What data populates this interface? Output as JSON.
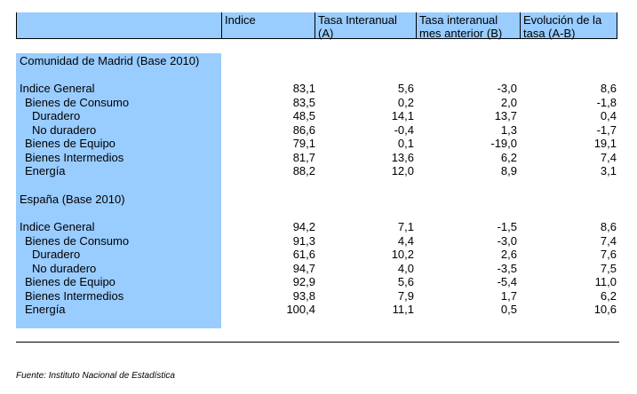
{
  "headers": [
    {
      "lines": [
        ""
      ]
    },
    {
      "lines": [
        "Indice"
      ]
    },
    {
      "lines": [
        "Tasa Interanual",
        "(A)"
      ]
    },
    {
      "lines": [
        "Tasa interanual",
        "mes anterior (B)"
      ]
    },
    {
      "lines": [
        "Evolución de la",
        "tasa (A-B)"
      ]
    }
  ],
  "sections": [
    {
      "title": "Comunidad de Madrid (Base 2010)",
      "rows": [
        {
          "label": "Indice General",
          "indent": 0,
          "values": [
            "83,1",
            "5,6",
            "-3,0",
            "8,6"
          ]
        },
        {
          "label": "Bienes de Consumo",
          "indent": 1,
          "values": [
            "83,5",
            "0,2",
            "2,0",
            "-1,8"
          ]
        },
        {
          "label": "Duradero",
          "indent": 2,
          "values": [
            "48,5",
            "14,1",
            "13,7",
            "0,4"
          ]
        },
        {
          "label": "No duradero",
          "indent": 2,
          "values": [
            "86,6",
            "-0,4",
            "1,3",
            "-1,7"
          ]
        },
        {
          "label": "Bienes de Equipo",
          "indent": 1,
          "values": [
            "79,1",
            "0,1",
            "-19,0",
            "19,1"
          ]
        },
        {
          "label": "Bienes Intermedios",
          "indent": 1,
          "values": [
            "81,7",
            "13,6",
            "6,2",
            "7,4"
          ]
        },
        {
          "label": "Energía",
          "indent": 1,
          "values": [
            "88,2",
            "12,0",
            "8,9",
            "3,1"
          ]
        }
      ]
    },
    {
      "title": "España (Base 2010)",
      "rows": [
        {
          "label": "Indice General",
          "indent": 0,
          "values": [
            "94,2",
            "7,1",
            "-1,5",
            "8,6"
          ]
        },
        {
          "label": "Bienes de Consumo",
          "indent": 1,
          "values": [
            "91,3",
            "4,4",
            "-3,0",
            "7,4"
          ]
        },
        {
          "label": "Duradero",
          "indent": 2,
          "values": [
            "61,6",
            "10,2",
            "2,6",
            "7,6"
          ]
        },
        {
          "label": "No duradero",
          "indent": 2,
          "values": [
            "94,7",
            "4,0",
            "-3,5",
            "7,5"
          ]
        },
        {
          "label": "Bienes de Equipo",
          "indent": 1,
          "values": [
            "92,9",
            "5,6",
            "-5,4",
            "11,0"
          ]
        },
        {
          "label": "Bienes Intermedios",
          "indent": 1,
          "values": [
            "93,8",
            "7,9",
            "1,7",
            "6,2"
          ]
        },
        {
          "label": "Energía",
          "indent": 1,
          "values": [
            "100,4",
            "11,1",
            "0,5",
            "10,6"
          ]
        }
      ]
    }
  ],
  "source": "Fuente: Instituto Nacional de Estadística"
}
